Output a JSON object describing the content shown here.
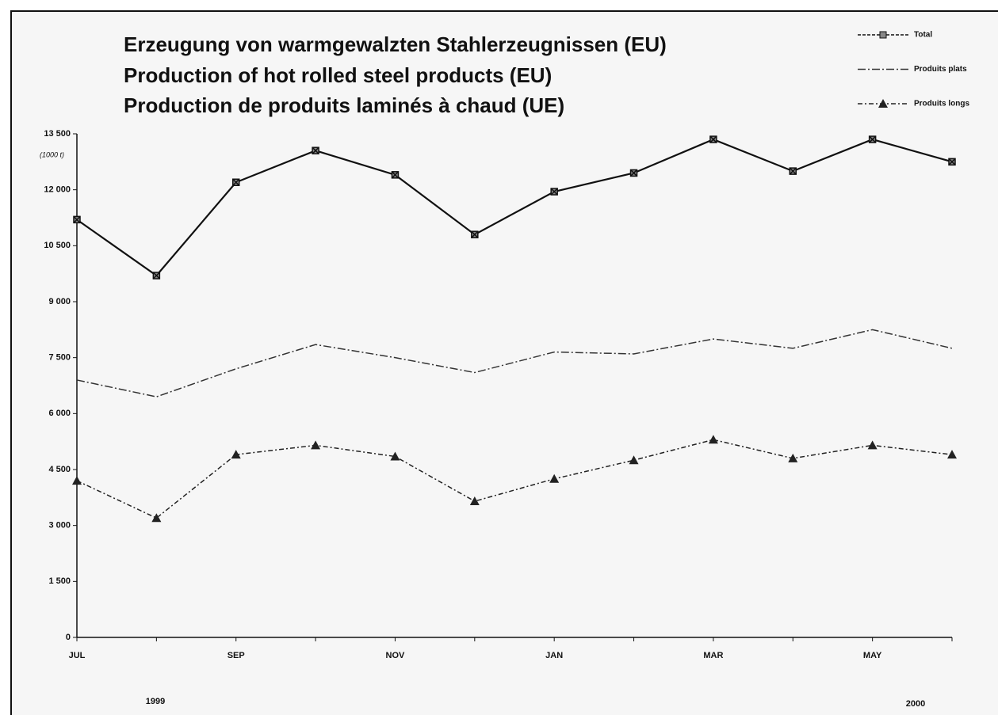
{
  "chart_data": {
    "type": "line",
    "title": [
      "Erzeugung von warmgewalzten Stahlerzeugnissen (EU)",
      "Production of hot rolled steel products (EU)",
      "Production de produits laminés à chaud (UE)"
    ],
    "y_label": "(1000 t)",
    "categories": [
      "JUL",
      null,
      "SEP",
      null,
      "NOV",
      null,
      "JAN",
      null,
      "MAR",
      null,
      "MAY",
      null
    ],
    "year_labels": [
      "1999",
      "2000"
    ],
    "series": [
      {
        "name": "Total",
        "color": "#111111",
        "marker": "square-x",
        "values": [
          11200,
          9700,
          12200,
          13050,
          12400,
          10800,
          11950,
          12450,
          13350,
          12500,
          13350,
          12750
        ]
      },
      {
        "name": "Produits plats",
        "color": "#333333",
        "marker": "none",
        "values": [
          6900,
          6450,
          7200,
          7850,
          7500,
          7100,
          7650,
          7600,
          8000,
          7750,
          8250,
          7750
        ]
      },
      {
        "name": "Produits longs",
        "color": "#222222",
        "marker": "triangle",
        "values": [
          4200,
          3200,
          4900,
          5150,
          4850,
          3650,
          4250,
          4750,
          5300,
          4800,
          5150,
          4900
        ]
      }
    ],
    "ylim": [
      0,
      13500
    ],
    "yticks": [
      0,
      {
        "value": 1500,
        "label": "1 500"
      },
      {
        "value": 3000,
        "label": "3 000"
      },
      {
        "value": 4500,
        "label": "4 500"
      },
      {
        "value": 6000,
        "label": "6 000"
      },
      {
        "value": 7500,
        "label": "7 500"
      },
      {
        "value": 9000,
        "label": "9 000"
      },
      {
        "value": 10500,
        "label": "10 500"
      },
      {
        "value": 12000,
        "label": "12 000"
      },
      {
        "value": 13500,
        "label": "13 500"
      }
    ],
    "grid": false,
    "legend": "top-right"
  }
}
